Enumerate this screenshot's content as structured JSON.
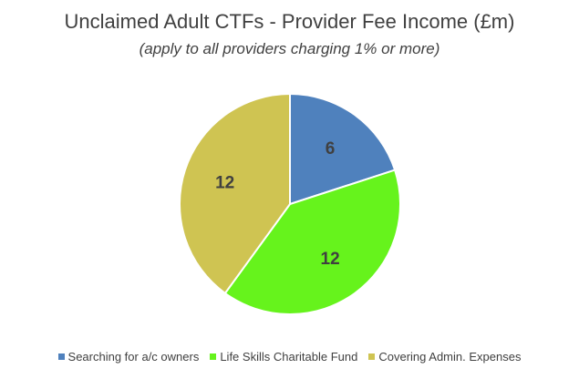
{
  "chart_data": {
    "type": "pie",
    "title": "Unclaimed Adult CTFs - Provider Fee Income (£m)",
    "subtitle": "(apply to all providers charging 1% or more)",
    "categories": [
      "Searching for a/c owners",
      "Life Skills Charitable Fund",
      "Covering Admin. Expenses"
    ],
    "values": [
      6,
      12,
      12
    ],
    "value_labels": [
      "6",
      "12",
      "12"
    ],
    "colors": [
      "#4f81bd",
      "#66f31c",
      "#cfc452"
    ],
    "legend": "bottom",
    "start_angle_deg": 0,
    "direction": "clockwise"
  }
}
